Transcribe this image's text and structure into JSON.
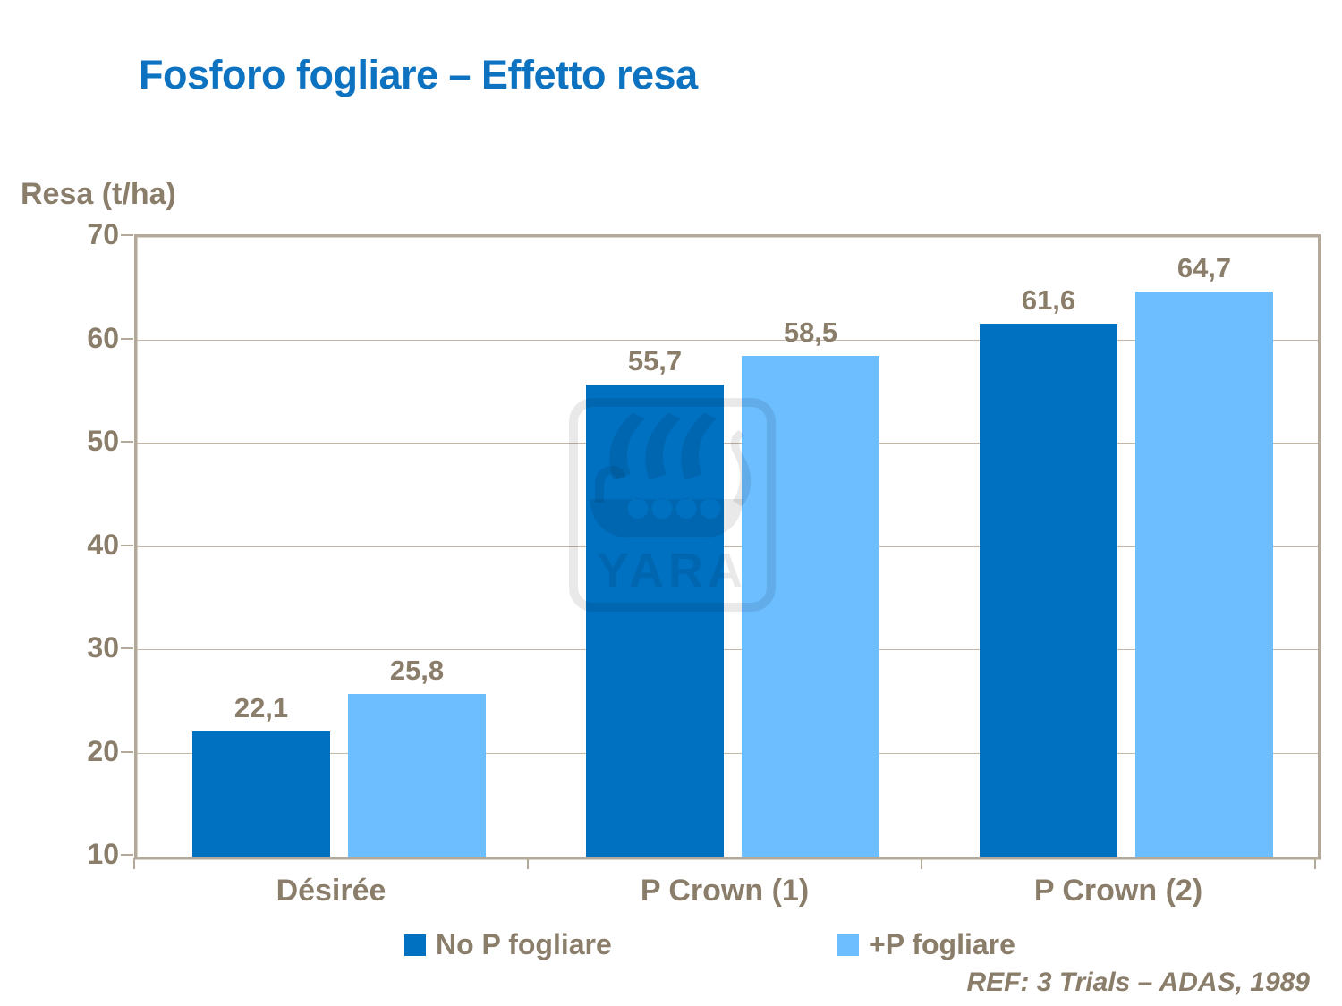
{
  "slide": {
    "title": "Fosforo fogliare – Effetto resa",
    "ref_note": "REF: 3 Trials – ADAS, 1989"
  },
  "chart_data": {
    "type": "bar",
    "title": "Fosforo fogliare – Effetto resa",
    "ylabel": "Resa (t/ha)",
    "xlabel": "",
    "categories": [
      "Désirée",
      "P Crown (1)",
      "P Crown (2)"
    ],
    "series": [
      {
        "name": "No P fogliare",
        "color": "#0070c0",
        "values": [
          22.1,
          55.7,
          61.6
        ]
      },
      {
        "name": "+P fogliare",
        "color": "#6cbeff",
        "values": [
          25.8,
          58.5,
          64.7
        ]
      }
    ],
    "data_label_decimal_separator": ",",
    "ylim": [
      10,
      70
    ],
    "ytick_step": 10,
    "grid": true,
    "legend_position": "bottom",
    "watermark": "YARA"
  },
  "colors": {
    "title_blue": "#0d72c0",
    "text_brown": "#8a7d6a",
    "axis_tan": "#b3a99a",
    "gridline_tan": "#c2b7a7",
    "series_dark_blue": "#0070c0",
    "series_light_blue": "#6cbeff"
  },
  "icons": {
    "watermark_logo": "yara-viking-ship-logo"
  }
}
